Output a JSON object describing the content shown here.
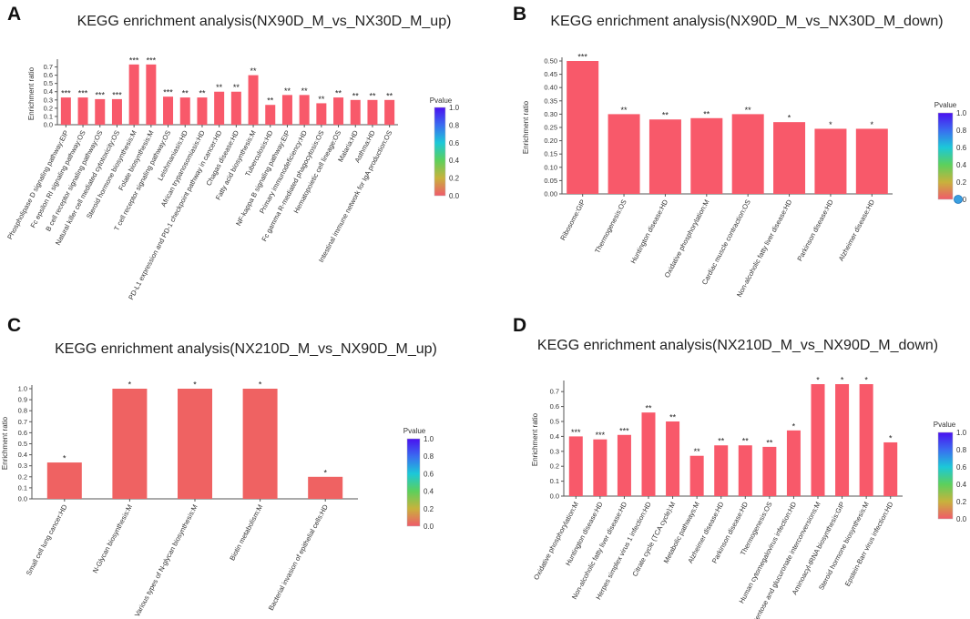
{
  "chart_data": [
    {
      "panel_label": "A",
      "type": "bar",
      "title": "KEGG enrichment analysis(NX90D_M_vs_NX30D_M_up)",
      "ylabel": "Enrichment ratio",
      "xlabel": "",
      "ylim": [
        0,
        0.75
      ],
      "yticks": [
        "0.0",
        "0.1",
        "0.2",
        "0.3",
        "0.4",
        "0.5",
        "0.6",
        "0.7"
      ],
      "categories": [
        "Phospholipase D signaling pathway:EIP",
        "Fc epsilon RI signaling pathway:OS",
        "B cell receptor signaling pathway:OS",
        "Natural killer cell mediated cytotoxicity:OS",
        "Steroid hormone biosynthesis:M",
        "Folate biosynthesis:M",
        "T cell receptor signaling pathway:OS",
        "Leishmaniasis:HD",
        "African trypanosomiasis:HD",
        "PD-L1 expression and PD-1 checkpoint pathway in cancer:HD",
        "Chagas disease:HD",
        "Fatty acid biosynthesis:M",
        "Tuberculosis:HD",
        "NF-kappa B signaling pathway:EIP",
        "Primary immunodeficiency:HD",
        "Fc gamma R-mediated phagocytosis:OS",
        "Hematopoietic cell lineage:OS",
        "Malaria:HD",
        "Asthma:HD",
        "Intestinal immune network for IgA production:OS"
      ],
      "values": [
        0.33,
        0.33,
        0.31,
        0.31,
        0.73,
        0.73,
        0.34,
        0.33,
        0.33,
        0.4,
        0.4,
        0.6,
        0.24,
        0.36,
        0.36,
        0.26,
        0.33,
        0.3,
        0.3,
        0.3
      ],
      "significance": [
        "***",
        "***",
        "***",
        "***",
        "***",
        "***",
        "***",
        "**",
        "**",
        "**",
        "**",
        "**",
        "**",
        "**",
        "**",
        "**",
        "**",
        "**",
        "**",
        "**"
      ],
      "colorbar": {
        "title": "Pvalue",
        "ticks": [
          "1.0",
          "0.8",
          "0.6",
          "0.4",
          "0.2",
          "0.0"
        ]
      }
    },
    {
      "panel_label": "B",
      "type": "bar",
      "title": "KEGG enrichment analysis(NX90D_M_vs_NX30D_M_down)",
      "ylabel": "Enrichment ratio",
      "xlabel": "",
      "ylim": [
        0,
        0.5
      ],
      "yticks": [
        "0.00",
        "0.05",
        "0.10",
        "0.15",
        "0.20",
        "0.25",
        "0.30",
        "0.35",
        "0.40",
        "0.45",
        "0.50"
      ],
      "categories": [
        "Ribosome:GIP",
        "Thermogenesis:OS",
        "Huntington disease:HD",
        "Oxidative phosphorylation:M",
        "Cardiac muscle contraction:OS",
        "Non-alcoholic fatty liver disease:HD",
        "Parkinson disease:HD",
        "Alzheimer disease:HD"
      ],
      "values": [
        0.5,
        0.3,
        0.28,
        0.285,
        0.3,
        0.27,
        0.245,
        0.245
      ],
      "significance": [
        "***",
        "**",
        "**",
        "**",
        "**",
        "*",
        "*",
        "*"
      ],
      "colorbar": {
        "title": "Pvalue",
        "ticks": [
          "1.0",
          "0.8",
          "0.6",
          "0.4",
          "0.2",
          "0.0"
        ]
      }
    },
    {
      "panel_label": "C",
      "type": "bar",
      "title": "KEGG enrichment analysis(NX210D_M_vs_NX90D_M_up)",
      "ylabel": "Enrichment ratio",
      "xlabel": "",
      "ylim": [
        0,
        1.0
      ],
      "yticks": [
        "0.0",
        "0.1",
        "0.2",
        "0.3",
        "0.4",
        "0.5",
        "0.6",
        "0.7",
        "0.8",
        "0.9",
        "1.0"
      ],
      "categories": [
        "Small cell lung cancer:HD",
        "N-Glycan biosynthesis:M",
        "Various types of N-glycan biosynthesis:M",
        "Biotin metabolism:M",
        "Bacterial invasion of epithelial cells:HD"
      ],
      "values": [
        0.33,
        1.0,
        1.0,
        1.0,
        0.2
      ],
      "significance": [
        "*",
        "*",
        "*",
        "*",
        "*"
      ],
      "colorbar": {
        "title": "Pvalue",
        "ticks": [
          "1.0",
          "0.8",
          "0.6",
          "0.4",
          "0.2",
          "0.0"
        ]
      }
    },
    {
      "panel_label": "D",
      "type": "bar",
      "title": "KEGG enrichment analysis(NX210D_M_vs_NX90D_M_down)",
      "ylabel": "Enrichment ratio",
      "xlabel": "",
      "ylim": [
        0,
        0.75
      ],
      "yticks": [
        "0.0",
        "0.1",
        "0.2",
        "0.3",
        "0.4",
        "0.5",
        "0.6",
        "0.7"
      ],
      "categories": [
        "Oxidative phosphorylation:M",
        "Huntington disease:HD",
        "Non-alcoholic fatty liver disease:HD",
        "Herpes simplex virus 1 infection:HD",
        "Citrate cycle (TCA cycle):M",
        "Metabolic pathways:M",
        "Alzheimer disease:HD",
        "Parkinson disease:HD",
        "Thermogenesis:OS",
        "Human cytomegalovirus infection:HD",
        "Pentose and glucuronate interconversions:M",
        "Aminoacyl-tRNA biosynthesis:GIP",
        "Steroid hormone biosynthesis:M",
        "Epstein-Barr virus infection:HD"
      ],
      "values": [
        0.4,
        0.38,
        0.41,
        0.56,
        0.5,
        0.27,
        0.34,
        0.34,
        0.33,
        0.44,
        0.75,
        0.75,
        0.75,
        0.36
      ],
      "significance": [
        "***",
        "***",
        "***",
        "**",
        "**",
        "**",
        "**",
        "**",
        "**",
        "*",
        "*",
        "*",
        "*",
        "*"
      ],
      "colorbar": {
        "title": "Pvalue",
        "ticks": [
          "1.0",
          "0.8",
          "0.6",
          "0.4",
          "0.2",
          "0.0"
        ]
      }
    }
  ],
  "colors": {
    "bar": "#f8596a",
    "bar_alt": "#ef6262",
    "axis": "#444444",
    "gradient": [
      "#4a10f0",
      "#3a6cf0",
      "#1cc8d8",
      "#5cd05c",
      "#c8b23c",
      "#f05a6a"
    ]
  }
}
